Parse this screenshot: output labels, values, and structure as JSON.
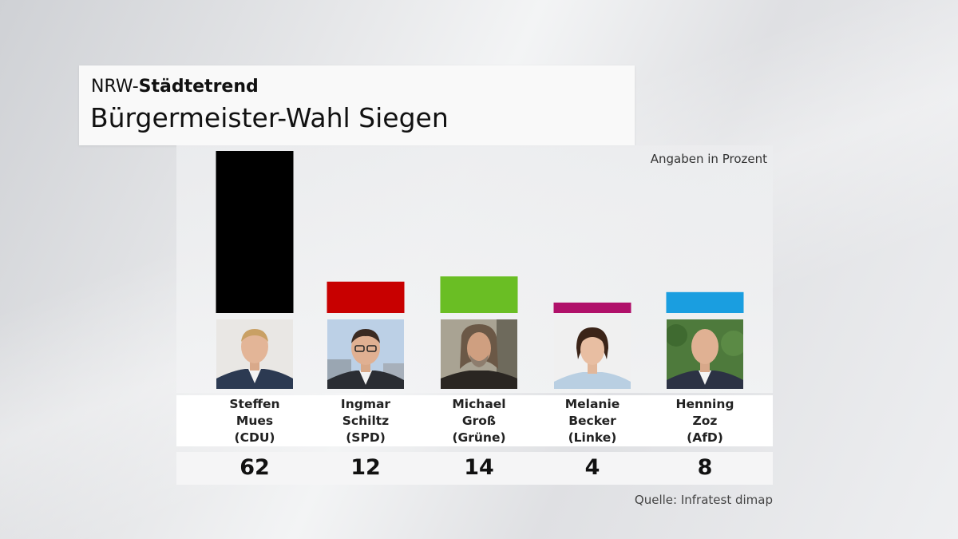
{
  "header": {
    "kicker_prefix": "NRW-",
    "kicker_bold": "Städtetrend",
    "title": "Bürgermeister-Wahl Siegen"
  },
  "unit_note": "Angaben in Prozent",
  "source": "Quelle: Infratest dimap",
  "candidates": [
    {
      "first": "Steffen",
      "last": "Mues",
      "party": "(CDU)",
      "value": "62",
      "color": "#000000"
    },
    {
      "first": "Ingmar",
      "last": "Schiltz",
      "party": "(SPD)",
      "value": "12",
      "color": "#c80000"
    },
    {
      "first": "Michael",
      "last": "Groß",
      "party": "(Grüne)",
      "value": "14",
      "color": "#6abe24"
    },
    {
      "first": "Melanie",
      "last": "Becker",
      "party": "(Linke)",
      "value": "4",
      "color": "#b0106a"
    },
    {
      "first": "Henning",
      "last": "Zoz",
      "party": "(AfD)",
      "value": "8",
      "color": "#1a9ee0"
    }
  ],
  "chart_data": {
    "type": "bar",
    "categories": [
      "Steffen Mues (CDU)",
      "Ingmar Schiltz (SPD)",
      "Michael Groß (Grüne)",
      "Melanie Becker (Linke)",
      "Henning Zoz (AfD)"
    ],
    "values": [
      62,
      12,
      14,
      4,
      8
    ],
    "colors": [
      "#000000",
      "#c80000",
      "#6abe24",
      "#b0106a",
      "#1a9ee0"
    ],
    "title": "Bürgermeister-Wahl Siegen",
    "ylabel": "Angaben in Prozent",
    "ylim": [
      0,
      62
    ],
    "grid": false
  }
}
